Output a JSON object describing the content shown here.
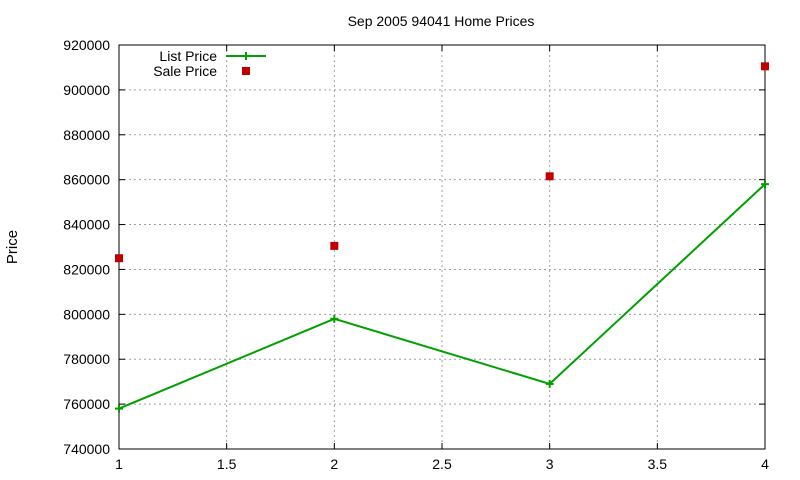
{
  "chart_data": {
    "type": "line",
    "title": "Sep 2005 94041 Home Prices",
    "xlabel": "",
    "ylabel": "Price",
    "xlim": [
      1,
      4
    ],
    "ylim": [
      740000,
      920000
    ],
    "x_ticks": [
      "1",
      "1.5",
      "2",
      "2.5",
      "3",
      "3.5",
      "4"
    ],
    "y_ticks": [
      "740000",
      "760000",
      "780000",
      "800000",
      "820000",
      "840000",
      "860000",
      "880000",
      "900000",
      "920000"
    ],
    "grid": true,
    "legend_position": "top-left",
    "series": [
      {
        "name": "List Price",
        "style": "line-plus",
        "color": "#00a000",
        "x": [
          1,
          2,
          3,
          4
        ],
        "y": [
          758000,
          798000,
          769000,
          858000
        ]
      },
      {
        "name": "Sale Price",
        "style": "square-points",
        "color": "#c00000",
        "x": [
          1,
          2,
          3,
          4
        ],
        "y": [
          825000,
          830500,
          861500,
          910500
        ]
      }
    ]
  }
}
